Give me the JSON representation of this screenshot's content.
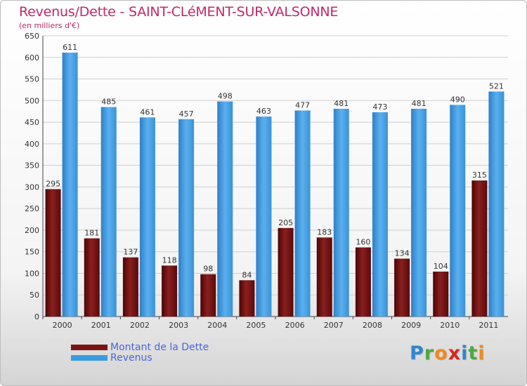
{
  "chart_data": {
    "type": "bar",
    "title": "Revenus/Dette - SAINT-CLéMENT-SUR-VALSONNE",
    "subtitle": "(en milliers d'€)",
    "categories": [
      "2000",
      "2001",
      "2002",
      "2003",
      "2004",
      "2005",
      "2006",
      "2007",
      "2008",
      "2009",
      "2010",
      "2011"
    ],
    "series": [
      {
        "name": "Montant de la Dette",
        "color": "#7a1313",
        "values": [
          295,
          181,
          137,
          118,
          98,
          84,
          205,
          183,
          160,
          134,
          104,
          315
        ]
      },
      {
        "name": "Revenus",
        "color": "#3b9be0",
        "values": [
          611,
          485,
          461,
          457,
          498,
          463,
          477,
          481,
          473,
          481,
          490,
          521
        ]
      }
    ],
    "ylim": [
      0,
      650
    ],
    "yticks": [
      0,
      50,
      100,
      150,
      200,
      250,
      300,
      350,
      400,
      450,
      500,
      550,
      600,
      650
    ],
    "grid": true,
    "legend_position": "bottom-left"
  },
  "logo": {
    "text": "Proxiti",
    "letters": [
      {
        "ch": "P",
        "color": "#2e86d1"
      },
      {
        "ch": "r",
        "color": "#4da843"
      },
      {
        "ch": "o",
        "color": "#f08a1c"
      },
      {
        "ch": "x",
        "color": "#d9261c"
      },
      {
        "ch": "i",
        "color": "#2e86d1"
      },
      {
        "ch": "t",
        "color": "#4da843"
      },
      {
        "ch": "i",
        "color": "#f08a1c"
      }
    ]
  }
}
